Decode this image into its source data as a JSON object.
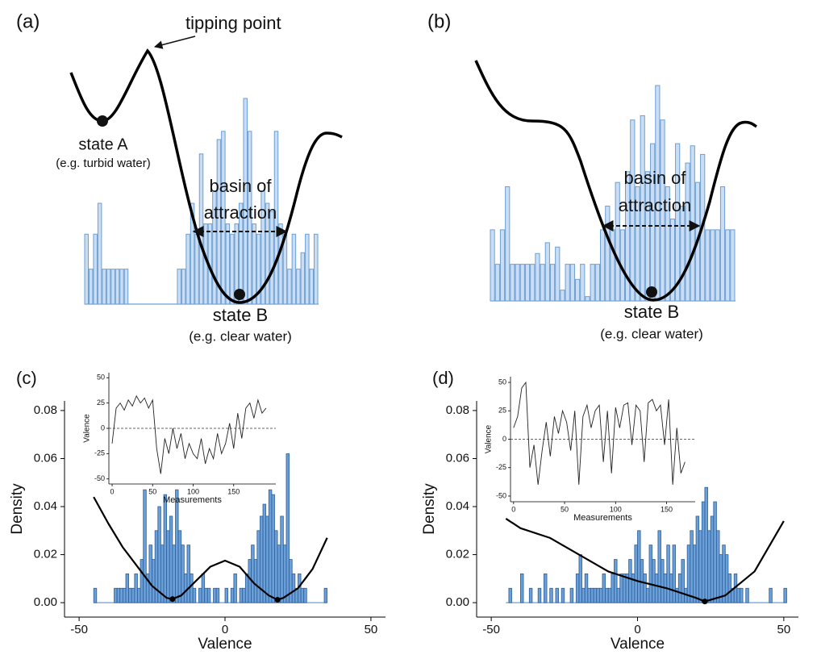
{
  "chart_data": [
    {
      "type": "schematic",
      "label": "(a)",
      "color": "#c9def4",
      "annotations": [
        "tipping point",
        "state A",
        "(e.g. turbid water)",
        "basin of",
        "attraction",
        "state B",
        "(e.g. clear water)"
      ],
      "values": [
        34,
        17,
        34,
        49,
        17,
        17,
        17,
        17,
        17,
        17,
        0,
        0,
        0,
        0,
        0,
        0,
        0,
        0,
        0,
        0,
        0,
        17,
        17,
        34,
        49,
        34,
        73,
        39,
        39,
        55,
        80,
        84,
        39,
        34,
        39,
        49,
        100,
        84,
        39,
        34,
        55,
        49,
        45,
        84,
        39,
        34,
        17,
        34,
        17,
        25,
        34,
        17,
        34
      ]
    },
    {
      "type": "schematic",
      "label": "(b)",
      "color": "#c9def4",
      "annotations": [
        "basin of",
        "attraction",
        "state B",
        "(e.g. clear water)"
      ],
      "values": [
        33,
        17,
        33,
        53,
        17,
        17,
        17,
        17,
        17,
        22,
        17,
        27,
        17,
        25,
        5,
        17,
        17,
        10,
        17,
        2,
        17,
        17,
        33,
        44,
        33,
        55,
        33,
        60,
        84,
        53,
        86,
        60,
        73,
        100,
        84,
        53,
        38,
        73,
        44,
        64,
        72,
        55,
        68,
        33,
        33,
        33,
        53,
        33,
        33
      ]
    },
    {
      "type": "histogram",
      "label": "(c)",
      "xlabel": "Valence",
      "ylabel": "Density",
      "color": "#6a9fd8",
      "xlim": [
        -55,
        55
      ],
      "ylim": [
        -0.006,
        0.084
      ],
      "xticks": [
        -50,
        0,
        50
      ],
      "yticks": [
        {
          "value": 0,
          "label": "0.00"
        },
        {
          "value": 0.02,
          "label": "0.02"
        },
        {
          "value": 0.04,
          "label": "0.04"
        },
        {
          "value": 0.06,
          "label": "0.06"
        },
        {
          "value": 0.08,
          "label": "0.08"
        }
      ],
      "bins": [
        -45,
        -44,
        -43,
        -42,
        -41,
        -40,
        -39,
        -38,
        -37,
        -36,
        -35,
        -34,
        -33,
        -32,
        -31,
        -30,
        -29,
        -28,
        -27,
        -26,
        -25,
        -24,
        -23,
        -22,
        -21,
        -20,
        -19,
        -18,
        -17,
        -16,
        -15,
        -14,
        -13,
        -12,
        -11,
        -10,
        -9,
        -8,
        -7,
        -6,
        -5,
        -4,
        -3,
        -2,
        -1,
        0,
        1,
        2,
        3,
        4,
        5,
        6,
        7,
        8,
        9,
        10,
        11,
        12,
        13,
        14,
        15,
        16,
        17,
        18,
        19,
        20,
        21,
        22,
        23,
        24,
        25,
        26,
        27,
        28,
        29,
        30,
        31,
        32,
        33,
        34,
        35
      ],
      "values": [
        0.006,
        0,
        0,
        0,
        0,
        0,
        0,
        0.006,
        0.006,
        0.006,
        0.006,
        0.012,
        0.006,
        0.006,
        0.012,
        0.006,
        0.018,
        0.047,
        0.012,
        0.024,
        0.018,
        0.03,
        0.04,
        0.024,
        0.045,
        0.03,
        0.036,
        0.024,
        0.047,
        0.03,
        0.024,
        0.012,
        0.024,
        0.012,
        0.006,
        0,
        0.006,
        0.012,
        0.006,
        0.006,
        0,
        0.006,
        0.006,
        0,
        0,
        0.006,
        0,
        0.006,
        0.012,
        0,
        0.006,
        0.006,
        0.012,
        0.018,
        0.024,
        0.018,
        0.03,
        0.036,
        0.041,
        0.036,
        0.047,
        0.045,
        0.03,
        0.024,
        0.036,
        0.024,
        0.062,
        0.018,
        0.012,
        0.006,
        0.012,
        0.006,
        0.006,
        0,
        0,
        0,
        0,
        0,
        0,
        0.006
      ],
      "curve": {
        "x": [
          -45,
          -40,
          -35,
          -30,
          -25,
          -20,
          -18,
          -15,
          -10,
          -5,
          0,
          5,
          10,
          15,
          18,
          20,
          25,
          30,
          35
        ],
        "y": [
          0.044,
          0.033,
          0.023,
          0.015,
          0.007,
          0.002,
          0.0015,
          0.003,
          0.009,
          0.015,
          0.0175,
          0.015,
          0.008,
          0.003,
          0.0012,
          0.002,
          0.006,
          0.014,
          0.027
        ]
      },
      "points": {
        "x": [
          -18,
          18
        ],
        "y": [
          0.0015,
          0.0012
        ]
      },
      "inset": {
        "xlabel": "Measurements",
        "ylabel": "Valence",
        "xlim": [
          -4,
          202
        ],
        "ylim": [
          -55,
          55
        ],
        "xticks": [
          0,
          50,
          100,
          150
        ],
        "yticks": [
          -50,
          -25,
          0,
          25,
          50
        ],
        "hline": 0,
        "x": [
          0,
          5,
          10,
          15,
          20,
          25,
          30,
          35,
          40,
          45,
          50,
          55,
          60,
          65,
          70,
          75,
          80,
          85,
          90,
          95,
          100,
          105,
          110,
          115,
          120,
          125,
          130,
          135,
          140,
          145,
          150,
          155,
          160,
          165,
          170,
          175,
          180,
          185,
          190
        ],
        "values": [
          -15,
          20,
          25,
          18,
          28,
          22,
          32,
          25,
          30,
          20,
          28,
          -20,
          -45,
          -10,
          -25,
          0,
          -20,
          -5,
          -30,
          -15,
          -25,
          -30,
          -10,
          -35,
          -20,
          -30,
          -5,
          -25,
          -15,
          5,
          -20,
          15,
          -10,
          20,
          25,
          10,
          28,
          15,
          20
        ]
      }
    },
    {
      "type": "histogram",
      "label": "(d)",
      "xlabel": "Valence",
      "ylabel": "Density",
      "color": "#6a9fd8",
      "xlim": [
        -55,
        55
      ],
      "ylim": [
        -0.006,
        0.084
      ],
      "xticks": [
        -50,
        0,
        50
      ],
      "yticks": [
        {
          "value": 0,
          "label": "0.00"
        },
        {
          "value": 0.02,
          "label": "0.02"
        },
        {
          "value": 0.04,
          "label": "0.04"
        },
        {
          "value": 0.06,
          "label": "0.06"
        },
        {
          "value": 0.08,
          "label": "0.08"
        }
      ],
      "bins": [
        -45,
        -44,
        -43,
        -42,
        -41,
        -40,
        -39,
        -38,
        -37,
        -36,
        -35,
        -34,
        -33,
        -32,
        -31,
        -30,
        -29,
        -28,
        -27,
        -26,
        -25,
        -24,
        -23,
        -22,
        -21,
        -20,
        -19,
        -18,
        -17,
        -16,
        -15,
        -14,
        -13,
        -12,
        -11,
        -10,
        -9,
        -8,
        -7,
        -6,
        -5,
        -4,
        -3,
        -2,
        -1,
        0,
        1,
        2,
        3,
        4,
        5,
        6,
        7,
        8,
        9,
        10,
        11,
        12,
        13,
        14,
        15,
        16,
        17,
        18,
        19,
        20,
        21,
        22,
        23,
        24,
        25,
        26,
        27,
        28,
        29,
        30,
        31,
        32,
        33,
        34,
        35,
        36,
        37,
        38,
        39,
        40,
        41,
        42,
        43,
        44,
        45,
        46,
        47,
        48,
        49,
        50,
        51
      ],
      "values": [
        0,
        0.006,
        0,
        0,
        0,
        0.012,
        0,
        0,
        0.006,
        0,
        0,
        0.006,
        0,
        0.012,
        0,
        0.006,
        0,
        0.006,
        0,
        0.006,
        0,
        0,
        0.006,
        0,
        0.012,
        0.02,
        0.006,
        0.012,
        0.006,
        0.006,
        0.006,
        0.006,
        0.006,
        0.012,
        0.006,
        0.006,
        0.012,
        0.018,
        0.006,
        0.012,
        0.012,
        0.012,
        0.018,
        0.012,
        0.024,
        0.03,
        0.018,
        0.012,
        0.006,
        0.024,
        0.018,
        0.012,
        0.03,
        0.018,
        0.012,
        0.024,
        0.012,
        0.024,
        0.006,
        0.012,
        0.018,
        0.006,
        0.024,
        0.03,
        0.024,
        0.036,
        0.03,
        0.042,
        0.048,
        0.03,
        0.036,
        0.042,
        0.03,
        0.02,
        0.024,
        0.02,
        0.012,
        0.006,
        0.012,
        0.006,
        0.006,
        0,
        0.006,
        0,
        0,
        0,
        0,
        0,
        0,
        0,
        0.006,
        0,
        0,
        0,
        0,
        0.006
      ],
      "curve": {
        "x": [
          -45,
          -40,
          -30,
          -20,
          -10,
          0,
          10,
          20,
          23,
          30,
          40,
          50
        ],
        "y": [
          0.035,
          0.031,
          0.027,
          0.02,
          0.013,
          0.009,
          0.006,
          0.002,
          0.0005,
          0.003,
          0.013,
          0.034
        ]
      },
      "points": {
        "x": [
          23
        ],
        "y": [
          0.0005
        ]
      },
      "inset": {
        "xlabel": "Measurements",
        "ylabel": "Valence",
        "xlim": [
          -3,
          178
        ],
        "ylim": [
          -55,
          55
        ],
        "xticks": [
          0,
          50,
          100,
          150
        ],
        "yticks": [
          -50,
          -25,
          0,
          25,
          50
        ],
        "hline": 0,
        "x": [
          0,
          4,
          8,
          12,
          16,
          20,
          24,
          28,
          32,
          36,
          40,
          44,
          48,
          52,
          56,
          60,
          64,
          68,
          72,
          76,
          80,
          84,
          88,
          92,
          96,
          100,
          104,
          108,
          112,
          116,
          120,
          124,
          128,
          132,
          136,
          140,
          144,
          148,
          152,
          156,
          160,
          164,
          168
        ],
        "values": [
          10,
          20,
          45,
          50,
          -25,
          -5,
          -40,
          -10,
          15,
          -15,
          20,
          5,
          25,
          15,
          -10,
          25,
          -40,
          20,
          30,
          10,
          25,
          30,
          -20,
          25,
          -30,
          28,
          10,
          30,
          32,
          -5,
          30,
          25,
          -20,
          32,
          35,
          25,
          30,
          -5,
          35,
          -40,
          10,
          -30,
          -20
        ]
      }
    }
  ]
}
